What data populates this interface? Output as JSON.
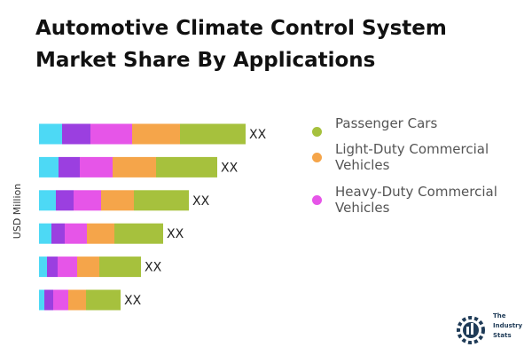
{
  "chart_data": {
    "type": "stacked-bar",
    "orientation": "horizontal",
    "title": "Automotive Climate Control System Market Share By Applications",
    "y_label": "USD Million",
    "xlim": [
      0,
      240
    ],
    "series": [
      {
        "color": "#4dd9f5",
        "values": [
          26,
          22,
          19,
          14,
          9,
          6
        ]
      },
      {
        "color": "#9b3fe0",
        "values": [
          32,
          24,
          20,
          15,
          12,
          10
        ]
      },
      {
        "name": "Heavy-Duty Commercial Vehicles",
        "color": "#e655e8",
        "values": [
          47,
          37,
          31,
          25,
          22,
          17
        ]
      },
      {
        "name": "Light-Duty Commercial Vehicles",
        "color": "#f5a54a",
        "values": [
          54,
          49,
          37,
          31,
          25,
          20
        ]
      },
      {
        "name": "Passenger Cars",
        "color": "#a6c13d",
        "values": [
          74,
          69,
          62,
          55,
          47,
          39
        ]
      }
    ],
    "total_labels": [
      "XX",
      "XX",
      "XX",
      "XX",
      "XX",
      "XX"
    ]
  },
  "logo": {
    "text": "The Industry Stats"
  }
}
